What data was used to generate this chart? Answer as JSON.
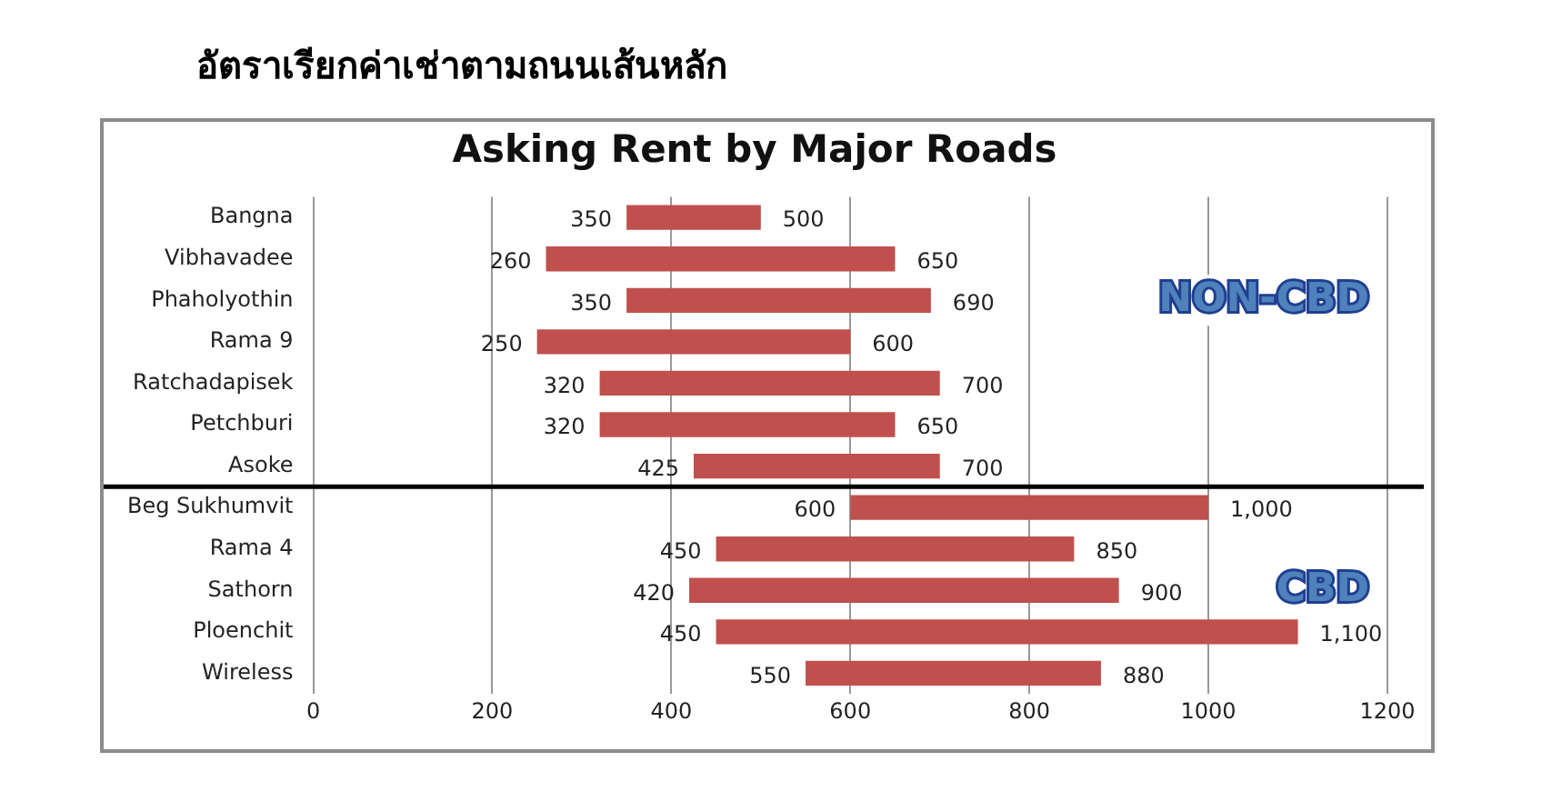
{
  "chart_data": {
    "type": "bar",
    "orientation": "horizontal",
    "title": "อัตราเรียกค่าเช่าตามถนนเส้นหลัก",
    "subtitle": "Asking Rent by Major Roads",
    "categories": [
      "Bangna",
      "Vibhavadee",
      "Phaholyothin",
      "Rama 9",
      "Ratchadapisek",
      "Petchburi",
      "Asoke",
      "Beg Sukhumvit",
      "Rama 4",
      "Sathorn",
      "Ploenchit",
      "Wireless"
    ],
    "base": [
      350,
      260,
      350,
      250,
      320,
      320,
      425,
      600,
      450,
      420,
      450,
      550
    ],
    "values": [
      150,
      390,
      340,
      350,
      380,
      330,
      275,
      400,
      400,
      480,
      650,
      330
    ],
    "color": "#c0504d",
    "xlim": [
      0,
      1200
    ],
    "xticks": [
      0,
      200,
      400,
      600,
      800,
      1000,
      1200
    ],
    "grid": "x",
    "legend": false,
    "ref_lines": [
      {
        "axis": "y",
        "value": "Beg Sukhumvit",
        "color": "#000000"
      }
    ],
    "annotations": [
      "NON-CBD",
      "CBD",
      {
        "text": "350",
        "x": 350,
        "y": "Bangna"
      },
      {
        "text": "500",
        "x": 500,
        "y": "Bangna"
      },
      {
        "text": "260",
        "x": 260,
        "y": "Vibhavadee"
      },
      {
        "text": "650",
        "x": 650,
        "y": "Vibhavadee"
      },
      {
        "text": "350",
        "x": 350,
        "y": "Phaholyothin"
      },
      {
        "text": "690",
        "x": 690,
        "y": "Phaholyothin"
      },
      {
        "text": "250",
        "x": 250,
        "y": "Rama 9"
      },
      {
        "text": "600",
        "x": 600,
        "y": "Rama 9"
      },
      {
        "text": "320",
        "x": 320,
        "y": "Ratchadapisek"
      },
      {
        "text": "700",
        "x": 700,
        "y": "Ratchadapisek"
      },
      {
        "text": "320",
        "x": 320,
        "y": "Petchburi"
      },
      {
        "text": "650",
        "x": 650,
        "y": "Petchburi"
      },
      {
        "text": "425",
        "x": 425,
        "y": "Asoke"
      },
      {
        "text": "700",
        "x": 700,
        "y": "Asoke"
      },
      {
        "text": "600",
        "x": 600,
        "y": "Beg Sukhumvit"
      },
      {
        "text": "1,000",
        "x": 1000,
        "y": "Beg Sukhumvit"
      },
      {
        "text": "450",
        "x": 450,
        "y": "Rama 4"
      },
      {
        "text": "850",
        "x": 850,
        "y": "Rama 4"
      },
      {
        "text": "420",
        "x": 420,
        "y": "Sathorn"
      },
      {
        "text": "900",
        "x": 900,
        "y": "Sathorn"
      },
      {
        "text": "450",
        "x": 450,
        "y": "Ploenchit"
      },
      {
        "text": "1,100",
        "x": 1100,
        "y": "Ploenchit"
      },
      {
        "text": "550",
        "x": 550,
        "y": "Wireless"
      },
      {
        "text": "880",
        "x": 880,
        "y": "Wireless"
      }
    ]
  }
}
